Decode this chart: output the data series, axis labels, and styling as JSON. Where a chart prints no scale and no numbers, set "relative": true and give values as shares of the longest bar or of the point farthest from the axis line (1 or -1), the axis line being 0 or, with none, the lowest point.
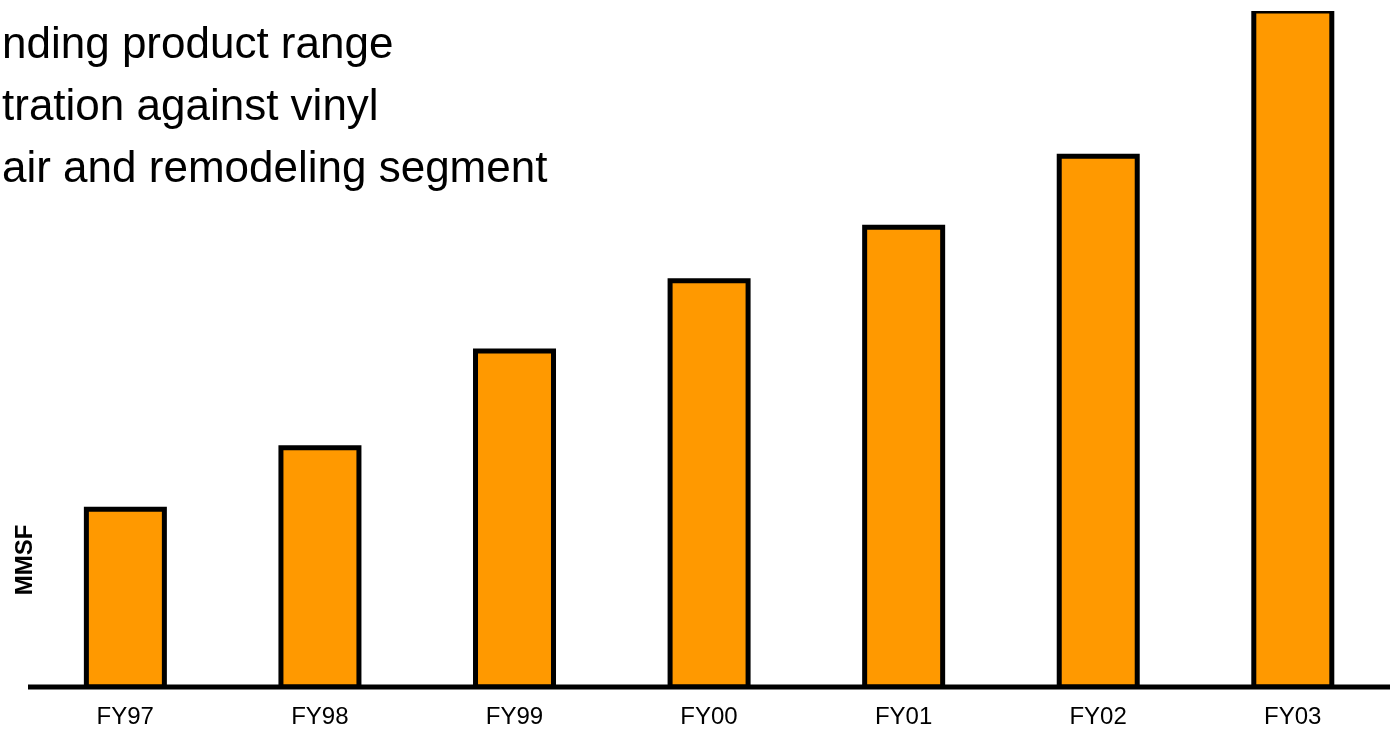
{
  "chart_data": {
    "type": "bar",
    "relative": true,
    "ylabel": "MMSF",
    "color": "#ff9900",
    "annotations": [
      "nding product range",
      "tration against vinyl",
      "air and remodeling segment"
    ],
    "categories": [
      "FY97",
      "FY98",
      "FY99",
      "FY00",
      "FY01",
      "FY02",
      "FY03"
    ],
    "values": [
      0.263,
      0.354,
      0.497,
      0.601,
      0.68,
      0.785,
      1
    ]
  }
}
